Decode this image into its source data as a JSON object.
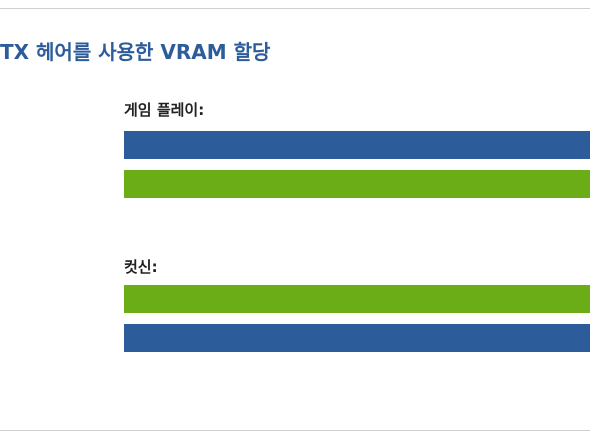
{
  "header": {
    "title": "TX 헤어를 사용한 VRAM 할당"
  },
  "sections": [
    {
      "label": "게임 플레이:"
    },
    {
      "label": "컷신:"
    }
  ]
}
